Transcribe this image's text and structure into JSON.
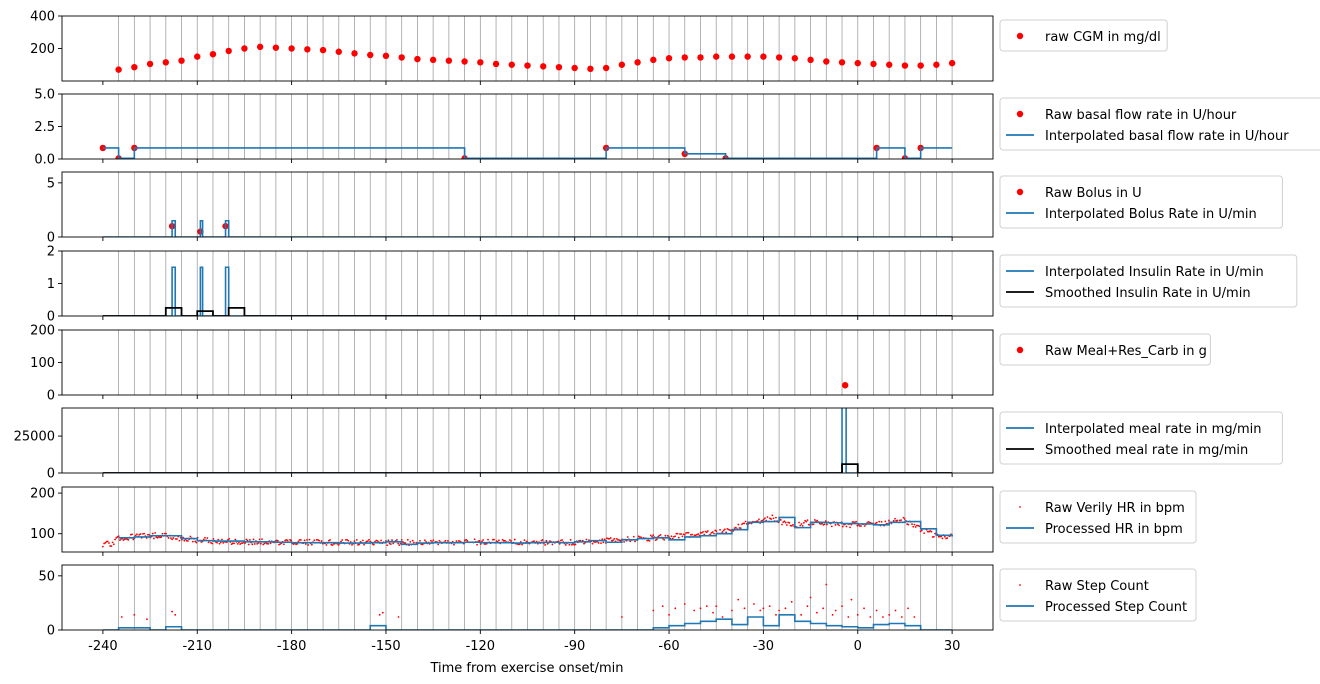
{
  "figure": {
    "xlabel": "Time from exercise onset/min",
    "xlim": [
      -253,
      43
    ],
    "xticks": [
      -240,
      -210,
      -180,
      -150,
      -120,
      -90,
      -60,
      -30,
      0,
      30
    ],
    "xtick_labels": [
      "-240",
      "-210",
      "-180",
      "-150",
      "-120",
      "-90",
      "-60",
      "-30",
      "0",
      "30"
    ],
    "vertical_gridlines": "every 5 min from -235 to 30"
  },
  "chart_data": [
    {
      "type": "scatter",
      "ylim": [
        0,
        400
      ],
      "yticks": [
        200,
        400
      ],
      "ytick_labels": [
        "200",
        "400"
      ],
      "legend": [
        {
          "label": "raw CGM in mg/dl",
          "kind": "dot",
          "color": "#ff0000"
        }
      ],
      "series": [
        {
          "name": "raw CGM in mg/dl",
          "kind": "scatter",
          "color": "#ff0000",
          "x": [
            -235,
            -230,
            -225,
            -220,
            -215,
            -210,
            -205,
            -200,
            -195,
            -190,
            -185,
            -180,
            -175,
            -170,
            -165,
            -160,
            -155,
            -150,
            -145,
            -140,
            -135,
            -130,
            -125,
            -120,
            -115,
            -110,
            -105,
            -100,
            -95,
            -90,
            -85,
            -80,
            -75,
            -70,
            -65,
            -60,
            -55,
            -50,
            -45,
            -40,
            -35,
            -30,
            -25,
            -20,
            -15,
            -10,
            -5,
            0,
            5,
            10,
            15,
            20,
            25,
            30
          ],
          "y": [
            70,
            85,
            105,
            115,
            125,
            150,
            165,
            185,
            200,
            210,
            205,
            200,
            195,
            190,
            180,
            170,
            160,
            155,
            145,
            135,
            130,
            125,
            120,
            115,
            105,
            100,
            95,
            90,
            85,
            80,
            75,
            80,
            100,
            115,
            130,
            140,
            145,
            145,
            150,
            150,
            150,
            150,
            145,
            140,
            130,
            120,
            115,
            110,
            105,
            100,
            95,
            95,
            100,
            110
          ]
        }
      ]
    },
    {
      "type": "line",
      "ylim": [
        0,
        5
      ],
      "yticks": [
        0,
        2.5,
        5
      ],
      "ytick_labels": [
        "0.0",
        "2.5",
        "5.0"
      ],
      "legend": [
        {
          "label": "Raw basal flow rate in U/hour",
          "kind": "dot",
          "color": "#ff0000"
        },
        {
          "label": "Interpolated basal flow rate in U/hour",
          "kind": "line",
          "color": "#1f77b4"
        }
      ],
      "series": [
        {
          "name": "Raw basal flow rate in U/hour",
          "kind": "scatter",
          "color": "#ff0000",
          "x": [
            -240,
            -235,
            -230,
            -125,
            -80,
            -55,
            -42,
            6,
            15,
            20
          ],
          "y": [
            0.85,
            0.05,
            0.85,
            0.05,
            0.85,
            0.4,
            0.05,
            0.85,
            0.05,
            0.85
          ]
        },
        {
          "name": "Interpolated basal flow rate in U/hour",
          "kind": "step",
          "color": "#1f77b4",
          "x": [
            -240,
            -235,
            -230,
            -125,
            -80,
            -55,
            -42,
            6,
            15,
            20,
            30
          ],
          "y": [
            0.85,
            0.05,
            0.85,
            0.05,
            0.85,
            0.4,
            0.05,
            0.85,
            0.05,
            0.85,
            0.85
          ]
        }
      ]
    },
    {
      "type": "line",
      "ylim": [
        0,
        6
      ],
      "yticks": [
        0,
        5
      ],
      "ytick_labels": [
        "0",
        "5"
      ],
      "legend": [
        {
          "label": "Raw Bolus in U",
          "kind": "dot",
          "color": "#ff0000"
        },
        {
          "label": "Interpolated Bolus Rate in U/min",
          "kind": "line",
          "color": "#1f77b4"
        }
      ],
      "series": [
        {
          "name": "Raw Bolus in U",
          "kind": "scatter",
          "color": "#ff0000",
          "x": [
            -218,
            -209,
            -201
          ],
          "y": [
            1.0,
            0.5,
            1.0
          ]
        },
        {
          "name": "Interpolated Bolus Rate in U/min",
          "kind": "step",
          "color": "#1f77b4",
          "x": [
            -240,
            -218,
            -217,
            -209,
            -208.3,
            -201,
            -200,
            30
          ],
          "y": [
            0,
            1.5,
            0,
            1.5,
            0,
            1.5,
            0,
            0
          ]
        }
      ]
    },
    {
      "type": "line",
      "ylim": [
        0,
        2
      ],
      "yticks": [
        0,
        1,
        2
      ],
      "ytick_labels": [
        "0",
        "1",
        "2"
      ],
      "legend": [
        {
          "label": "Interpolated Insulin Rate in U/min",
          "kind": "line",
          "color": "#1f77b4"
        },
        {
          "label": "Smoothed Insulin Rate in U/min",
          "kind": "line",
          "color": "#000000"
        }
      ],
      "series": [
        {
          "name": "Interpolated Insulin Rate in U/min",
          "kind": "step",
          "color": "#1f77b4",
          "x": [
            -240,
            -218,
            -217,
            -209,
            -208.3,
            -201,
            -200,
            30
          ],
          "y": [
            0,
            1.5,
            0,
            1.5,
            0,
            1.5,
            0,
            0
          ]
        },
        {
          "name": "Smoothed Insulin Rate in U/min",
          "kind": "step",
          "color": "#000000",
          "x": [
            -240,
            -220,
            -215,
            -210,
            -205,
            -200,
            -195,
            30
          ],
          "y": [
            0,
            0.25,
            0,
            0.15,
            0,
            0.25,
            0,
            0
          ]
        }
      ]
    },
    {
      "type": "scatter",
      "ylim": [
        0,
        200
      ],
      "yticks": [
        0,
        100,
        200
      ],
      "ytick_labels": [
        "0",
        "100",
        "200"
      ],
      "legend": [
        {
          "label": "Raw Meal+Res_Carb in g",
          "kind": "dot",
          "color": "#ff0000"
        }
      ],
      "series": [
        {
          "name": "Raw Meal+Res_Carb in g",
          "kind": "scatter",
          "color": "#ff0000",
          "x": [
            -4
          ],
          "y": [
            30
          ]
        }
      ]
    },
    {
      "type": "line",
      "ylim": [
        0,
        44000
      ],
      "yticks": [
        0,
        25000
      ],
      "ytick_labels": [
        "0",
        "25000"
      ],
      "legend": [
        {
          "label": "Interpolated meal rate in mg/min",
          "kind": "line",
          "color": "#1f77b4"
        },
        {
          "label": "Smoothed meal rate in mg/min",
          "kind": "line",
          "color": "#000000"
        }
      ],
      "series": [
        {
          "name": "Interpolated meal rate in mg/min",
          "kind": "step",
          "color": "#1f77b4",
          "x": [
            -240,
            -5,
            -3.7,
            30
          ],
          "y": [
            0,
            60000,
            0,
            0
          ]
        },
        {
          "name": "Smoothed meal rate in mg/min",
          "kind": "step",
          "color": "#000000",
          "x": [
            -240,
            -5,
            0,
            30
          ],
          "y": [
            0,
            6000,
            0,
            0
          ]
        }
      ]
    },
    {
      "type": "line",
      "ylim": [
        55,
        215
      ],
      "yticks": [
        100,
        200
      ],
      "ytick_labels": [
        "100",
        "200"
      ],
      "legend": [
        {
          "label": "Raw Verily HR in bpm",
          "kind": "smalldot",
          "color": "#ff0000"
        },
        {
          "label": "Processed HR in bpm",
          "kind": "line",
          "color": "#1f77b4"
        }
      ],
      "series": [
        {
          "name": "Raw Verily HR in bpm",
          "kind": "noisy",
          "color": "#ff0000",
          "x0": -240,
          "x1": 30,
          "n": 700,
          "noise": 7,
          "base_x": [
            -240,
            -237,
            -235,
            -230,
            -225,
            -220,
            -215,
            -205,
            -195,
            -150,
            -120,
            -90,
            -75,
            -65,
            -55,
            -45,
            -40,
            -35,
            -30,
            -27,
            -25,
            -20,
            -15,
            -10,
            -5,
            0,
            5,
            10,
            15,
            20,
            25,
            30
          ],
          "base_y": [
            75,
            76,
            90,
            92,
            95,
            95,
            88,
            82,
            80,
            78,
            80,
            78,
            84,
            90,
            95,
            102,
            110,
            126,
            130,
            140,
            130,
            120,
            128,
            125,
            122,
            123,
            122,
            128,
            133,
            110,
            95,
            93
          ]
        },
        {
          "name": "Processed HR in bpm",
          "kind": "step",
          "color": "#1f77b4",
          "x": [
            -235,
            -230,
            -225,
            -220,
            -215,
            -210,
            -205,
            -200,
            -195,
            -190,
            -185,
            -180,
            -175,
            -170,
            -165,
            -160,
            -155,
            -150,
            -145,
            -140,
            -135,
            -130,
            -125,
            -120,
            -115,
            -110,
            -105,
            -100,
            -95,
            -90,
            -85,
            -80,
            -75,
            -70,
            -65,
            -60,
            -55,
            -50,
            -45,
            -40,
            -35,
            -30,
            -25,
            -20,
            -15,
            -10,
            -5,
            0,
            5,
            10,
            15,
            20,
            25,
            30
          ],
          "y": [
            90,
            92,
            95,
            95,
            88,
            83,
            82,
            82,
            80,
            80,
            79,
            78,
            78,
            78,
            77,
            77,
            78,
            80,
            74,
            77,
            78,
            78,
            79,
            78,
            78,
            77,
            78,
            79,
            78,
            80,
            83,
            79,
            85,
            88,
            90,
            85,
            92,
            95,
            100,
            110,
            128,
            130,
            140,
            115,
            128,
            127,
            125,
            124,
            122,
            128,
            130,
            112,
            96,
            93
          ]
        }
      ]
    },
    {
      "type": "line",
      "ylim": [
        0,
        60
      ],
      "yticks": [
        0,
        50
      ],
      "ytick_labels": [
        "0",
        "50"
      ],
      "legend": [
        {
          "label": "Raw Step Count",
          "kind": "smalldot",
          "color": "#ff0000"
        },
        {
          "label": "Processed Step Count",
          "kind": "line",
          "color": "#1f77b4"
        }
      ],
      "series": [
        {
          "name": "Raw Step Count",
          "kind": "scatter",
          "color": "#ff0000",
          "small": true,
          "x": [
            -234,
            -230,
            -226,
            -218,
            -217,
            -152,
            -151,
            -146,
            -75,
            -65,
            -62,
            -60,
            -58,
            -55,
            -52,
            -50,
            -48,
            -46,
            -45,
            -43,
            -40,
            -38,
            -36,
            -35,
            -33,
            -31,
            -30,
            -28,
            -26,
            -25,
            -23,
            -21,
            -20,
            -18,
            -16,
            -15,
            -13,
            -11,
            -10,
            -8,
            -7,
            -5,
            -3,
            -2,
            0,
            2,
            4,
            6,
            8,
            10,
            12,
            14,
            16,
            18
          ],
          "y": [
            12,
            14,
            10,
            17,
            14,
            14,
            16,
            12,
            12,
            18,
            22,
            14,
            20,
            24,
            18,
            20,
            22,
            16,
            22,
            12,
            18,
            28,
            20,
            10,
            24,
            18,
            20,
            22,
            14,
            18,
            20,
            26,
            12,
            14,
            22,
            30,
            16,
            20,
            42,
            14,
            18,
            22,
            12,
            28,
            14,
            20,
            12,
            18,
            12,
            14,
            18,
            12,
            20,
            12
          ]
        },
        {
          "name": "Processed Step Count",
          "kind": "step",
          "color": "#1f77b4",
          "x": [
            -240,
            -235,
            -225,
            -220,
            -215,
            -160,
            -155,
            -150,
            -70,
            -65,
            -60,
            -55,
            -50,
            -45,
            -40,
            -35,
            -30,
            -25,
            -20,
            -15,
            -10,
            -5,
            0,
            5,
            10,
            15,
            20,
            30
          ],
          "y": [
            0,
            2,
            0,
            3,
            0,
            0,
            4,
            0,
            0,
            2,
            4,
            6,
            8,
            10,
            5,
            12,
            4,
            14,
            8,
            6,
            4,
            3,
            2,
            5,
            6,
            4,
            0,
            0
          ]
        }
      ]
    }
  ]
}
